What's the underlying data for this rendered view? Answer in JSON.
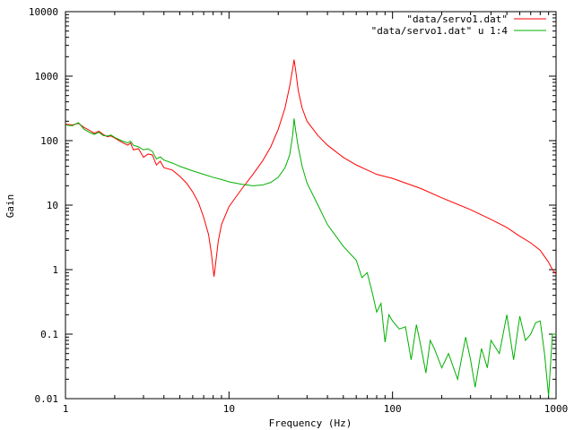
{
  "chart_data": {
    "type": "line",
    "title": "",
    "xlabel": "Frequency (Hz)",
    "ylabel": "Gain",
    "xscale": "log",
    "yscale": "log",
    "xlim": [
      1,
      1000
    ],
    "ylim": [
      0.01,
      10000
    ],
    "x_ticks": [
      1,
      10,
      100,
      1000
    ],
    "x_tick_labels": [
      "1",
      "10",
      "100",
      "1000"
    ],
    "y_ticks": [
      0.01,
      0.1,
      1,
      10,
      100,
      1000,
      10000
    ],
    "y_tick_labels": [
      "0.01",
      "0.1",
      "1",
      "10",
      "100",
      "1000",
      "10000"
    ],
    "grid": false,
    "legend_position": "top-right",
    "series": [
      {
        "name": "\"data/servo1.dat\"",
        "color": "#ff0000",
        "points": [
          [
            1.0,
            180
          ],
          [
            1.1,
            175
          ],
          [
            1.2,
            185
          ],
          [
            1.3,
            160
          ],
          [
            1.4,
            145
          ],
          [
            1.5,
            130
          ],
          [
            1.6,
            140
          ],
          [
            1.7,
            125
          ],
          [
            1.8,
            115
          ],
          [
            1.9,
            118
          ],
          [
            2.0,
            110
          ],
          [
            2.2,
            95
          ],
          [
            2.4,
            85
          ],
          [
            2.5,
            92
          ],
          [
            2.6,
            72
          ],
          [
            2.8,
            75
          ],
          [
            3.0,
            55
          ],
          [
            3.2,
            62
          ],
          [
            3.4,
            60
          ],
          [
            3.6,
            42
          ],
          [
            3.8,
            48
          ],
          [
            4.0,
            38
          ],
          [
            4.5,
            35
          ],
          [
            5.0,
            28
          ],
          [
            5.5,
            22
          ],
          [
            6.0,
            16
          ],
          [
            6.5,
            11
          ],
          [
            7.0,
            6.5
          ],
          [
            7.5,
            3.5
          ],
          [
            7.8,
            1.8
          ],
          [
            8.0,
            1.0
          ],
          [
            8.1,
            0.78
          ],
          [
            8.3,
            1.3
          ],
          [
            8.6,
            2.8
          ],
          [
            9.0,
            5.0
          ],
          [
            10.0,
            9.5
          ],
          [
            12.0,
            18
          ],
          [
            14.0,
            30
          ],
          [
            16.0,
            48
          ],
          [
            18.0,
            80
          ],
          [
            20.0,
            150
          ],
          [
            22.0,
            320
          ],
          [
            23.5,
            700
          ],
          [
            24.5,
            1300
          ],
          [
            25.0,
            1800
          ],
          [
            25.6,
            1200
          ],
          [
            26.5,
            600
          ],
          [
            28.0,
            320
          ],
          [
            30.0,
            200
          ],
          [
            35.0,
            120
          ],
          [
            40.0,
            85
          ],
          [
            50.0,
            55
          ],
          [
            60.0,
            42
          ],
          [
            70.0,
            35
          ],
          [
            80.0,
            30
          ],
          [
            100.0,
            26
          ],
          [
            150.0,
            18
          ],
          [
            200.0,
            13
          ],
          [
            300.0,
            8.5
          ],
          [
            400.0,
            6
          ],
          [
            500.0,
            4.5
          ],
          [
            600.0,
            3.3
          ],
          [
            700.0,
            2.6
          ],
          [
            800.0,
            2.0
          ],
          [
            850.0,
            1.6
          ],
          [
            900.0,
            1.3
          ],
          [
            950.0,
            1.0
          ],
          [
            1000.0,
            0.85
          ]
        ]
      },
      {
        "name": "\"data/servo1.dat\" u 1:4",
        "color": "#00b000",
        "points": [
          [
            1.0,
            175
          ],
          [
            1.1,
            170
          ],
          [
            1.2,
            190
          ],
          [
            1.3,
            150
          ],
          [
            1.4,
            135
          ],
          [
            1.5,
            125
          ],
          [
            1.6,
            135
          ],
          [
            1.7,
            120
          ],
          [
            1.8,
            118
          ],
          [
            1.9,
            122
          ],
          [
            2.0,
            112
          ],
          [
            2.2,
            100
          ],
          [
            2.4,
            92
          ],
          [
            2.5,
            98
          ],
          [
            2.6,
            85
          ],
          [
            2.8,
            80
          ],
          [
            3.0,
            72
          ],
          [
            3.2,
            75
          ],
          [
            3.4,
            68
          ],
          [
            3.6,
            52
          ],
          [
            3.8,
            56
          ],
          [
            4.0,
            50
          ],
          [
            4.5,
            45
          ],
          [
            5.0,
            40
          ],
          [
            6.0,
            34
          ],
          [
            7.0,
            30
          ],
          [
            8.0,
            27
          ],
          [
            9.0,
            25
          ],
          [
            10.0,
            23
          ],
          [
            12.0,
            21
          ],
          [
            14.0,
            20
          ],
          [
            16.0,
            20.5
          ],
          [
            18.0,
            22.5
          ],
          [
            20.0,
            27
          ],
          [
            22.0,
            38
          ],
          [
            23.5,
            60
          ],
          [
            24.5,
            120
          ],
          [
            25.0,
            220
          ],
          [
            25.6,
            140
          ],
          [
            26.5,
            80
          ],
          [
            28.0,
            40
          ],
          [
            30.0,
            22
          ],
          [
            35.0,
            10
          ],
          [
            40.0,
            5
          ],
          [
            50.0,
            2.3
          ],
          [
            60.0,
            1.4
          ],
          [
            65.0,
            0.75
          ],
          [
            70.0,
            0.9
          ],
          [
            75.0,
            0.45
          ],
          [
            80.0,
            0.22
          ],
          [
            85.0,
            0.3
          ],
          [
            90.0,
            0.075
          ],
          [
            95.0,
            0.2
          ],
          [
            100.0,
            0.16
          ],
          [
            110.0,
            0.12
          ],
          [
            120.0,
            0.13
          ],
          [
            130.0,
            0.04
          ],
          [
            140.0,
            0.14
          ],
          [
            150.0,
            0.06
          ],
          [
            160.0,
            0.025
          ],
          [
            170.0,
            0.08
          ],
          [
            180.0,
            0.06
          ],
          [
            200.0,
            0.03
          ],
          [
            220.0,
            0.05
          ],
          [
            250.0,
            0.02
          ],
          [
            280.0,
            0.09
          ],
          [
            300.0,
            0.04
          ],
          [
            320.0,
            0.015
          ],
          [
            350.0,
            0.06
          ],
          [
            380.0,
            0.03
          ],
          [
            400.0,
            0.08
          ],
          [
            450.0,
            0.05
          ],
          [
            500.0,
            0.2
          ],
          [
            550.0,
            0.04
          ],
          [
            600.0,
            0.19
          ],
          [
            650.0,
            0.08
          ],
          [
            700.0,
            0.1
          ],
          [
            750.0,
            0.15
          ],
          [
            800.0,
            0.16
          ],
          [
            850.0,
            0.05
          ],
          [
            900.0,
            0.011
          ],
          [
            950.0,
            0.1
          ],
          [
            1000.0,
            0.1
          ]
        ]
      }
    ]
  }
}
